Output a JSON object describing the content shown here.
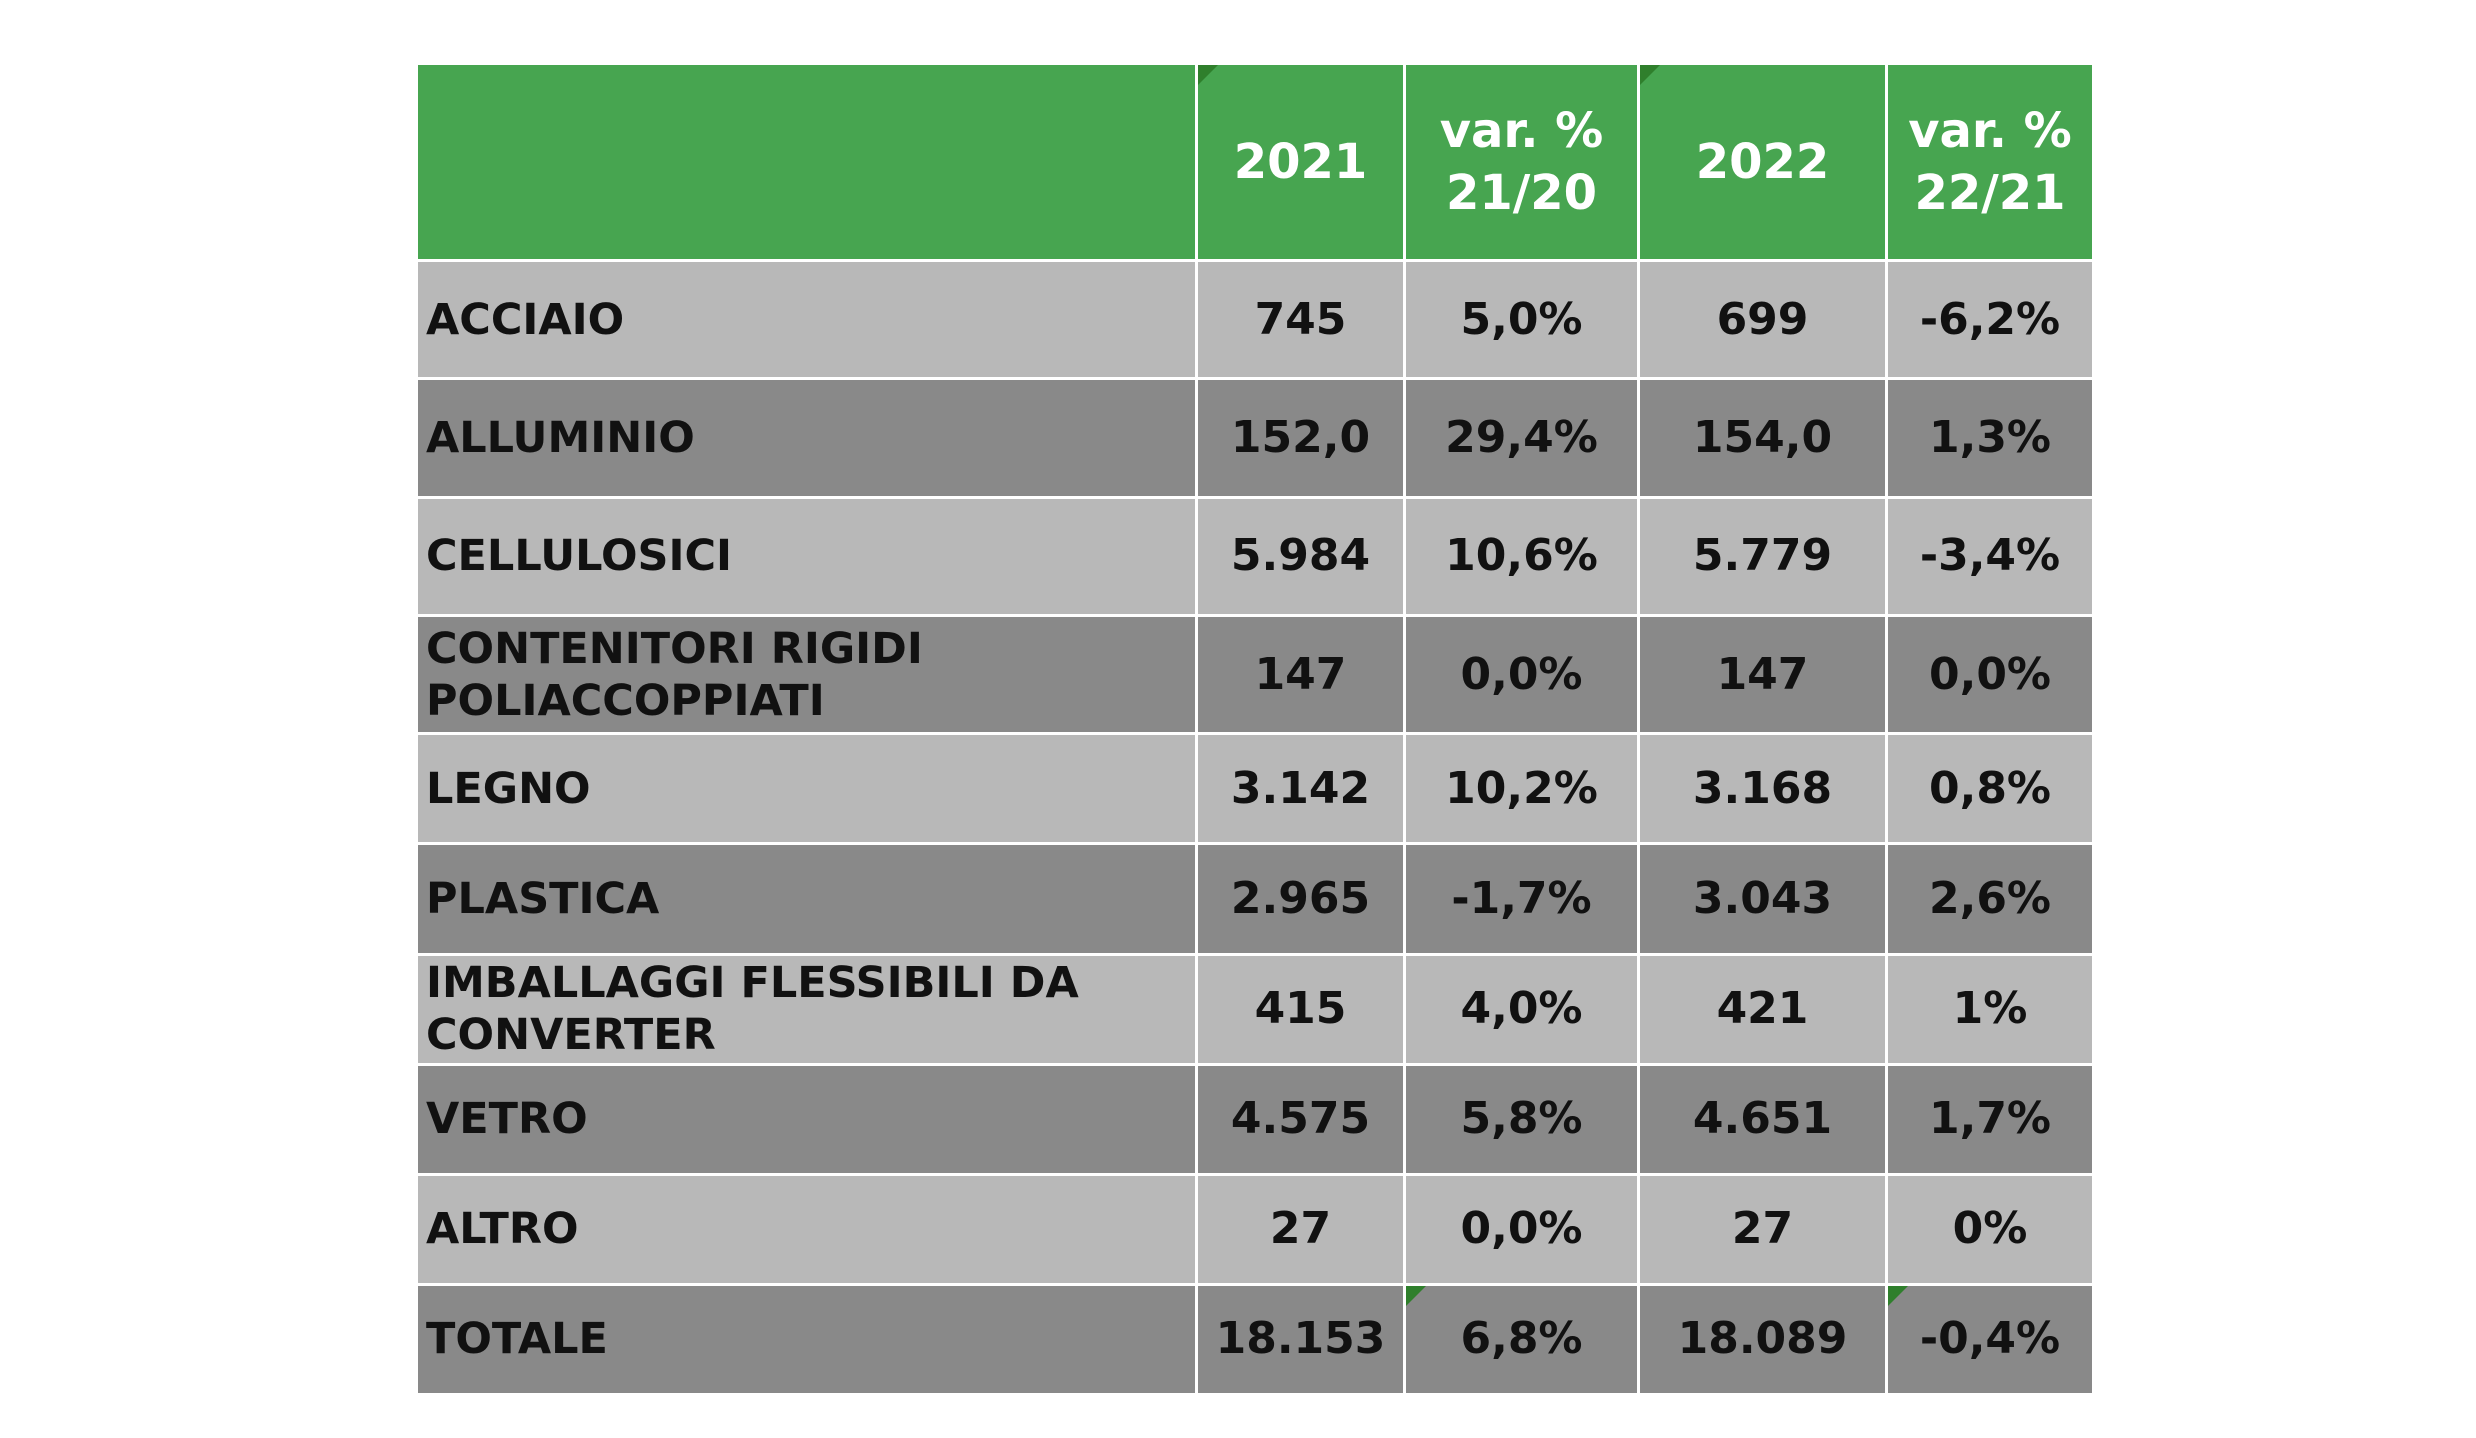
{
  "table": {
    "headers": [
      "",
      "2021",
      "var. % 21/20",
      "2022",
      "var. % 22/21"
    ],
    "header_lines": {
      "col_2021": "2021",
      "var1_line1": "var. %",
      "var1_line2": "21/20",
      "col_2022": "2022",
      "var2_line1": "var. %",
      "var2_line2": "22/21"
    },
    "rows": [
      {
        "label": "ACCIAIO",
        "v2021": "745",
        "var2120": "5,0%",
        "v2022": "699",
        "var2221": "-6,2%"
      },
      {
        "label": "ALLUMINIO",
        "v2021": "152,0",
        "var2120": "29,4%",
        "v2022": "154,0",
        "var2221": "1,3%"
      },
      {
        "label": "CELLULOSICI",
        "v2021": "5.984",
        "var2120": "10,6%",
        "v2022": "5.779",
        "var2221": "-3,4%"
      },
      {
        "label": "CONTENITORI RIGIDI POLIACCOPPIATI",
        "label_line1": "CONTENITORI RIGIDI",
        "label_line2": "POLIACCOPPIATI",
        "v2021": "147",
        "var2120": "0,0%",
        "v2022": "147",
        "var2221": "0,0%"
      },
      {
        "label": "LEGNO",
        "v2021": "3.142",
        "var2120": "10,2%",
        "v2022": "3.168",
        "var2221": "0,8%"
      },
      {
        "label": "PLASTICA",
        "v2021": "2.965",
        "var2120": "-1,7%",
        "v2022": "3.043",
        "var2221": "2,6%"
      },
      {
        "label": "IMBALLAGGI FLESSIBILI DA CONVERTER",
        "label_line1": "IMBALLAGGI FLESSIBILI DA",
        "label_line2": "CONVERTER",
        "v2021": "415",
        "var2120": "4,0%",
        "v2022": "421",
        "var2221": "1%"
      },
      {
        "label": "VETRO",
        "v2021": "4.575",
        "var2120": "5,8%",
        "v2022": "4.651",
        "var2221": "1,7%"
      },
      {
        "label": "ALTRO",
        "v2021": "27",
        "var2120": "0,0%",
        "v2022": "27",
        "var2221": "0%"
      },
      {
        "label": "TOTALE",
        "v2021": "18.153",
        "var2120": "6,8%",
        "v2022": "18.089",
        "var2221": "-0,4%"
      }
    ]
  },
  "colors": {
    "header_bg": "#47a550",
    "row_light": "#b8b8b8",
    "row_dark": "#898989",
    "marker": "#2f7f2c"
  }
}
